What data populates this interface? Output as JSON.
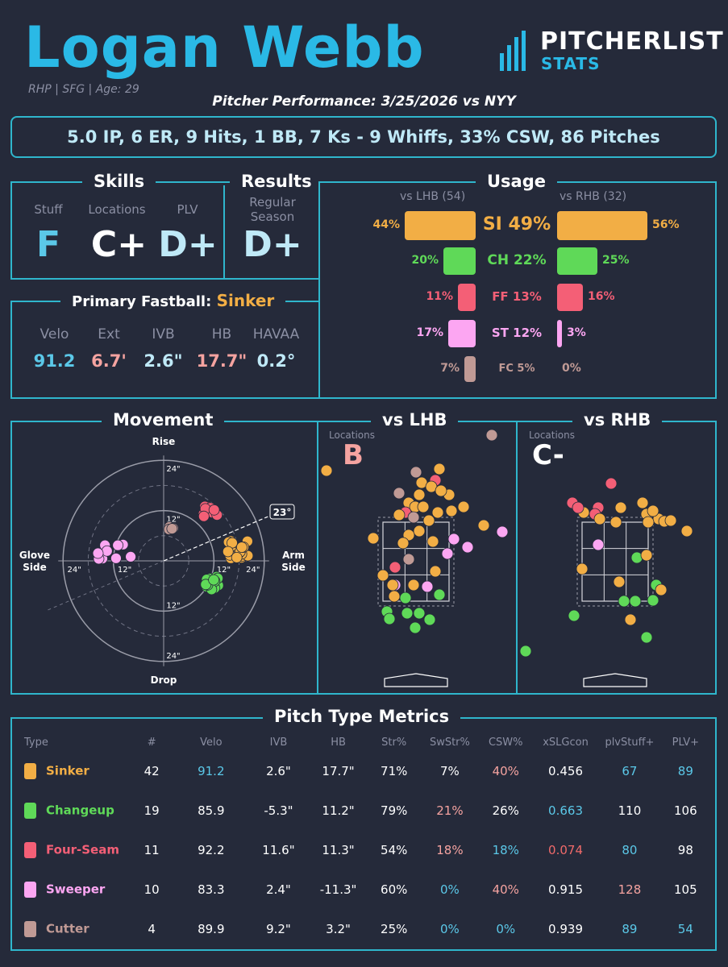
{
  "header": {
    "name": "Logan Webb",
    "meta": "RHP | SFG | Age: 29",
    "performance": "Pitcher Performance: 3/25/2026 vs NYY",
    "summary": "5.0 IP, 6 ER, 9 Hits, 1 BB, 7 Ks - 9 Whiffs, 33% CSW, 86 Pitches",
    "logo_line1": "PITCHERLIST",
    "logo_line2": "STATS"
  },
  "colors": {
    "sinker": "#f2ae45",
    "changeup": "#5fd958",
    "fourseam": "#f45f76",
    "sweeper": "#fca6f2",
    "cutter": "#c09a95",
    "accent": "#2fb6cc",
    "good": "#5bc8e8",
    "bad": "#f06a6a",
    "salmon": "#f5a3a0"
  },
  "skills": {
    "title": "Skills",
    "stuff_label": "Stuff",
    "stuff_grade": "F",
    "locations_label": "Locations",
    "locations_grade": "C+",
    "plv_label": "PLV",
    "plv_grade": "D+"
  },
  "results": {
    "title": "Results",
    "label_line1": "Regular",
    "label_line2": "Season",
    "grade": "D+"
  },
  "fastball": {
    "title": "Primary Fastball:",
    "pitch": "Sinker",
    "labels": [
      "Velo",
      "Ext",
      "IVB",
      "HB",
      "HAVAA"
    ],
    "values": [
      "91.2",
      "6.7'",
      "2.6\"",
      "17.7\"",
      "0.2°"
    ]
  },
  "usage": {
    "title": "Usage",
    "lhb_header": "vs LHB (54)",
    "rhb_header": "vs RHB (32)",
    "rows": [
      {
        "label": "SI 49%",
        "lhb": "44%",
        "rhb": "56%",
        "lhb_val": 44,
        "rhb_val": 56,
        "color": "#f2ae45"
      },
      {
        "label": "CH 22%",
        "lhb": "20%",
        "rhb": "25%",
        "lhb_val": 20,
        "rhb_val": 25,
        "color": "#5fd958"
      },
      {
        "label": "FF 13%",
        "lhb": "11%",
        "rhb": "16%",
        "lhb_val": 11,
        "rhb_val": 16,
        "color": "#f45f76"
      },
      {
        "label": "ST 12%",
        "lhb": "17%",
        "rhb": "3%",
        "lhb_val": 17,
        "rhb_val": 3,
        "color": "#fca6f2"
      },
      {
        "label": "FC 5%",
        "lhb": "7%",
        "rhb": "0%",
        "lhb_val": 7,
        "rhb_val": 0,
        "color": "#c09a95"
      }
    ]
  },
  "movement": {
    "title": "Movement",
    "rise": "Rise",
    "drop": "Drop",
    "glove": "Glove Side",
    "arm": "Arm Side",
    "ring_outer": "24\"",
    "ring_inner": "12\"",
    "arm_angle": "23°"
  },
  "locations": {
    "lhb_title": "vs LHB",
    "rhb_title": "vs RHB",
    "label": "Locations",
    "lhb_grade": "B",
    "rhb_grade": "C-"
  },
  "metrics": {
    "title": "Pitch Type Metrics",
    "headers": [
      "Type",
      "#",
      "Velo",
      "IVB",
      "HB",
      "Str%",
      "SwStr%",
      "CSW%",
      "xSLGcon",
      "plvStuff+",
      "PLV+"
    ],
    "rows": [
      {
        "type": "Sinker",
        "n": "42",
        "velo": "91.2",
        "ivb": "2.6\"",
        "hb": "17.7\"",
        "str": "71%",
        "swstr": "7%",
        "csw": "40%",
        "xslg": "0.456",
        "stuff": "67",
        "plv": "89"
      },
      {
        "type": "Changeup",
        "n": "19",
        "velo": "85.9",
        "ivb": "-5.3\"",
        "hb": "11.2\"",
        "str": "79%",
        "swstr": "21%",
        "csw": "26%",
        "xslg": "0.663",
        "stuff": "110",
        "plv": "106"
      },
      {
        "type": "Four-Seam",
        "n": "11",
        "velo": "92.2",
        "ivb": "11.6\"",
        "hb": "11.3\"",
        "str": "54%",
        "swstr": "18%",
        "csw": "18%",
        "xslg": "0.074",
        "stuff": "80",
        "plv": "98"
      },
      {
        "type": "Sweeper",
        "n": "10",
        "velo": "83.3",
        "ivb": "2.4\"",
        "hb": "-11.3\"",
        "str": "60%",
        "swstr": "0%",
        "csw": "40%",
        "xslg": "0.915",
        "stuff": "128",
        "plv": "105"
      },
      {
        "type": "Cutter",
        "n": "4",
        "velo": "89.9",
        "ivb": "9.2\"",
        "hb": "3.2\"",
        "str": "25%",
        "swstr": "0%",
        "csw": "0%",
        "xslg": "0.939",
        "stuff": "89",
        "plv": "54"
      }
    ]
  }
}
